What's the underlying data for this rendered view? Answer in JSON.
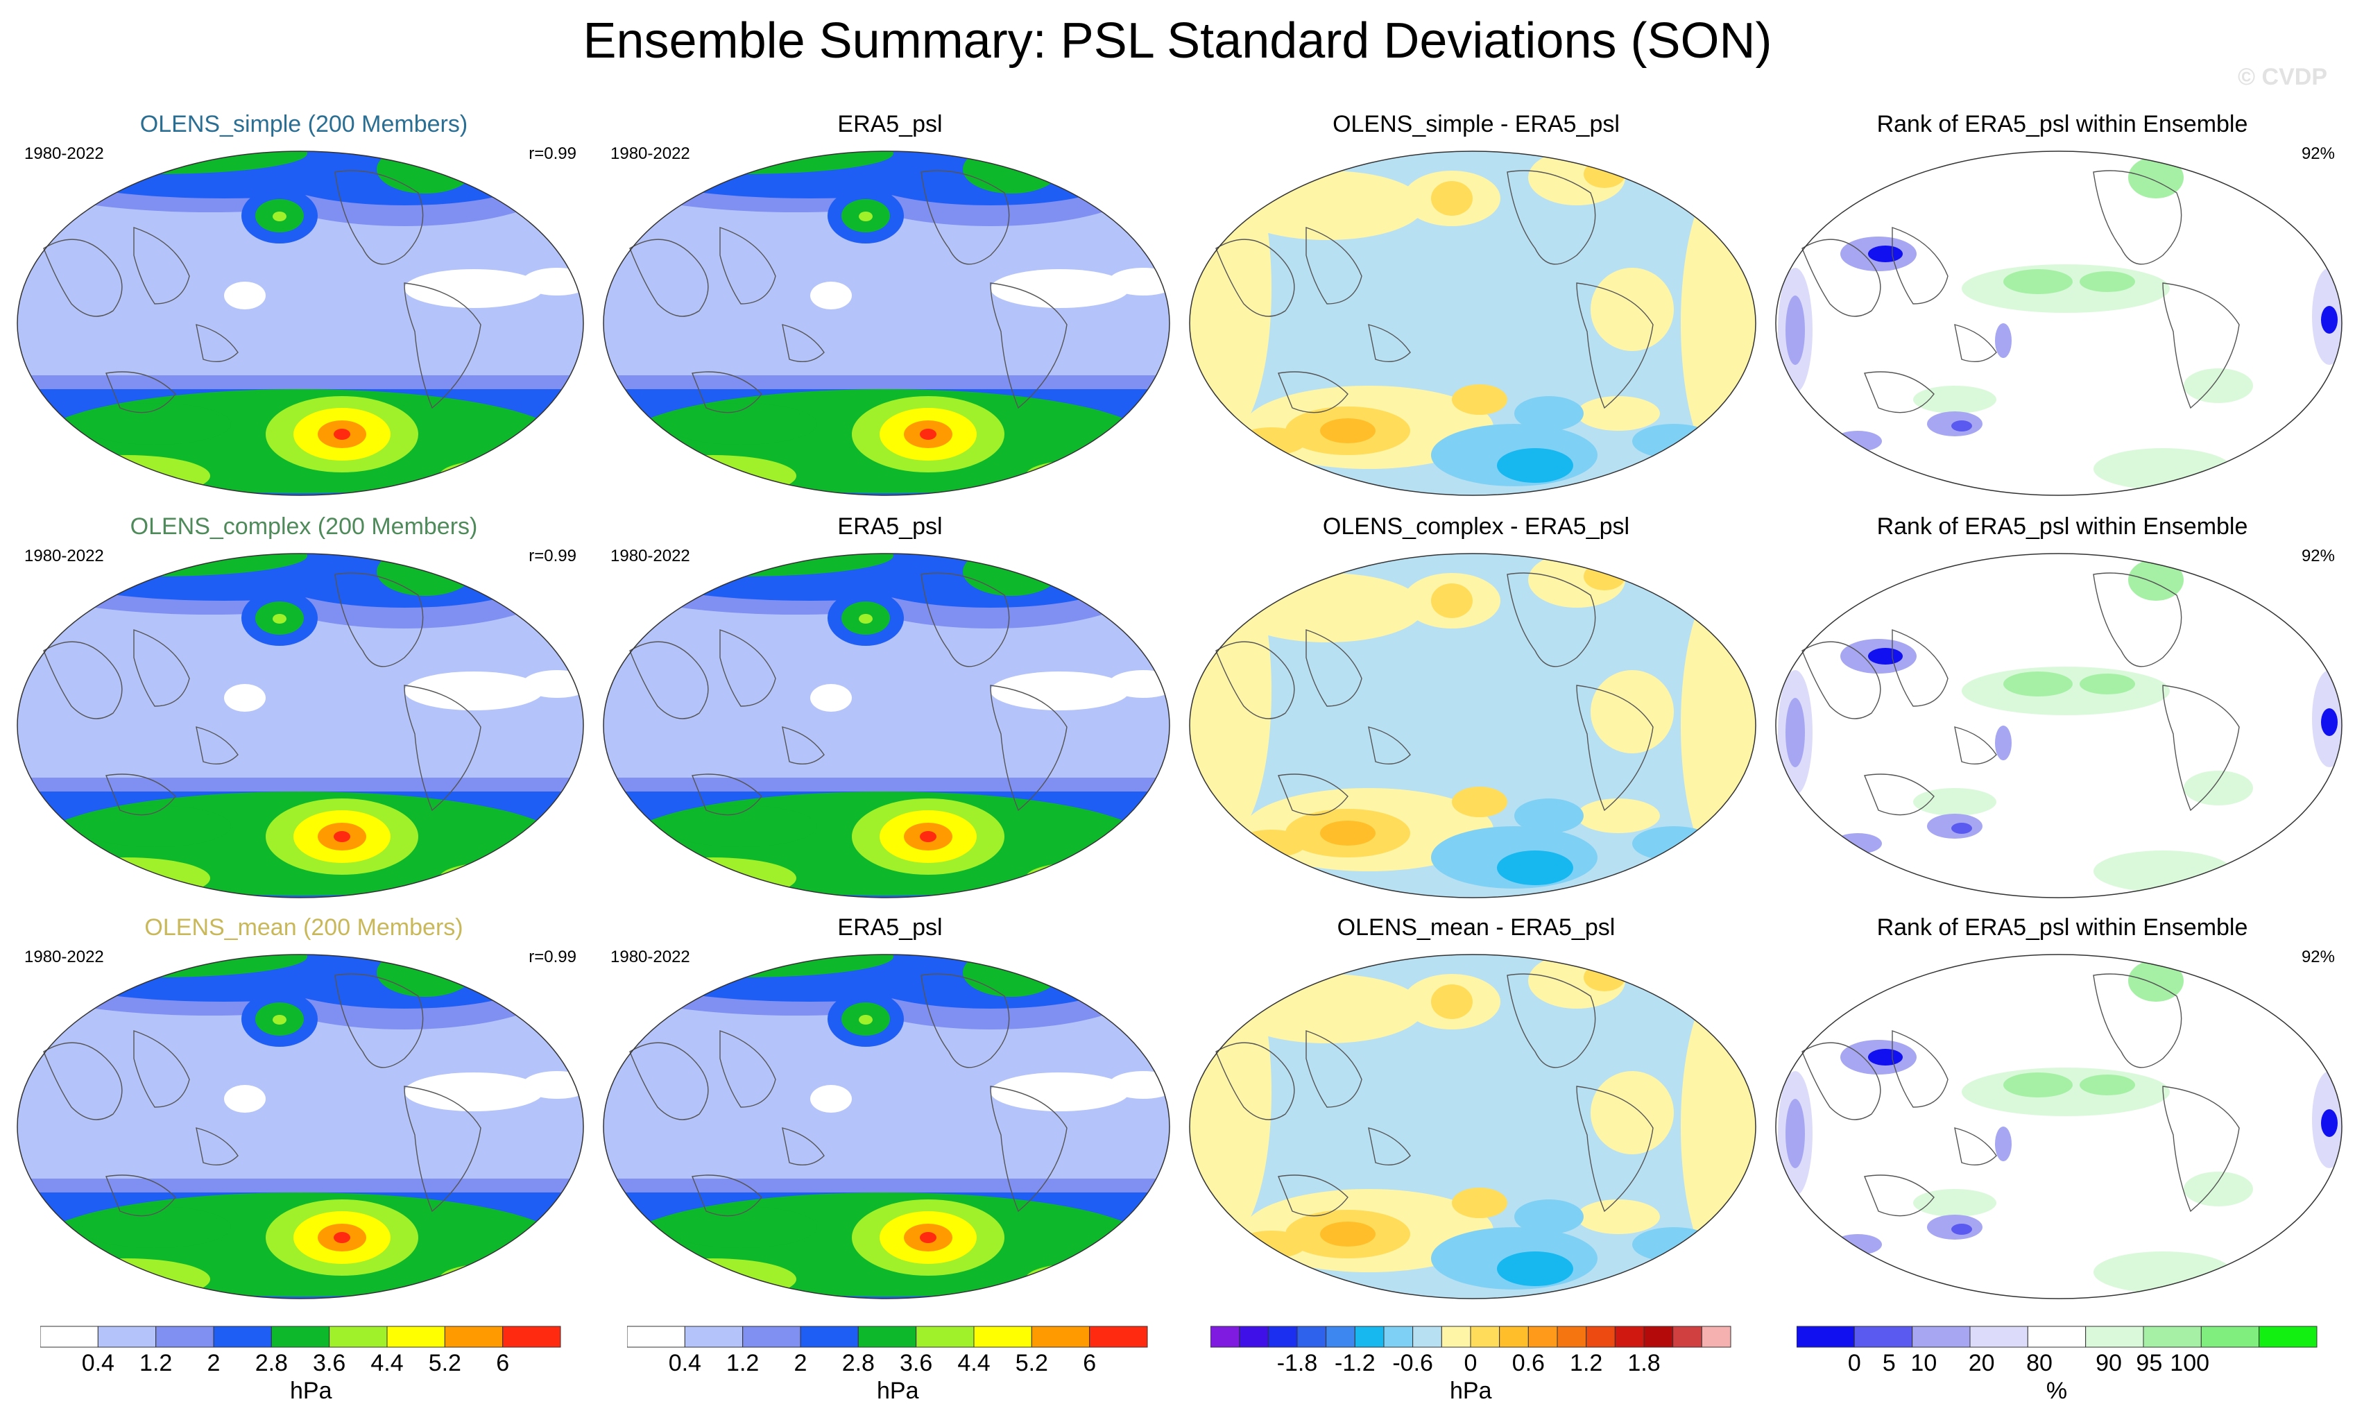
{
  "page": {
    "title": "Ensemble Summary: PSL Standard Deviations (SON)",
    "watermark": "© CVDP"
  },
  "colors": {
    "std": [
      "#ffffff",
      "#b4c3fa",
      "#7f8ff2",
      "#1f5ef5",
      "#0db82a",
      "#a0f02a",
      "#ffff00",
      "#ff9a00",
      "#ff2a10"
    ],
    "diff": [
      "#7f1ae0",
      "#3f10e8",
      "#1a2ff0",
      "#2f62ec",
      "#3d87f0",
      "#17b7f0",
      "#7fd0f5",
      "#b7e0f3",
      "#fff5a6",
      "#ffdc5a",
      "#ffbe2a",
      "#ff9a1a",
      "#f57510",
      "#ec4a10",
      "#d01810",
      "#b40a0a",
      "#d04040",
      "#f5b0b0"
    ],
    "rank": [
      "#1010f0",
      "#5a5af0",
      "#a6a6f3",
      "#dcdcfa",
      "#ffffff",
      "#daf9da",
      "#a6f0a6",
      "#7fee7f",
      "#12f012"
    ]
  },
  "colorbars": {
    "std": {
      "labels": [
        "0.4",
        "1.2",
        "2",
        "2.8",
        "3.6",
        "4.4",
        "5.2",
        "6"
      ],
      "unit": "hPa"
    },
    "diff": {
      "labels": [
        "-1.8",
        "-1.2",
        "-0.6",
        "0",
        "0.6",
        "1.2",
        "1.8"
      ],
      "unit": "hPa"
    },
    "rank": {
      "labels": [
        "0",
        "5",
        "10",
        "20",
        "80",
        "90",
        "95",
        "100"
      ],
      "unit": "%"
    }
  },
  "chart_data": [
    {
      "type": "heatmap",
      "row": 1,
      "title": "OLENS_simple (200 Members)",
      "title_color": "#2a6f93",
      "period": "1980-2022",
      "stat": "r=0.99",
      "field": "std",
      "units": "hPa"
    },
    {
      "type": "heatmap",
      "row": 1,
      "title": "ERA5_psl",
      "period": "1980-2022",
      "stat": "",
      "field": "std",
      "units": "hPa"
    },
    {
      "type": "heatmap",
      "row": 1,
      "title": "OLENS_simple - ERA5_psl",
      "period": "",
      "stat": "",
      "field": "diff",
      "units": "hPa"
    },
    {
      "type": "heatmap",
      "row": 1,
      "title": "Rank of ERA5_psl within Ensemble",
      "period": "",
      "stat": "92%",
      "field": "rank",
      "units": "%"
    },
    {
      "type": "heatmap",
      "row": 2,
      "title": "OLENS_complex (200 Members)",
      "title_color": "#4f8a5a",
      "period": "1980-2022",
      "stat": "r=0.99",
      "field": "std",
      "units": "hPa"
    },
    {
      "type": "heatmap",
      "row": 2,
      "title": "ERA5_psl",
      "period": "1980-2022",
      "stat": "",
      "field": "std",
      "units": "hPa"
    },
    {
      "type": "heatmap",
      "row": 2,
      "title": "OLENS_complex - ERA5_psl",
      "period": "",
      "stat": "",
      "field": "diff",
      "units": "hPa"
    },
    {
      "type": "heatmap",
      "row": 2,
      "title": "Rank of ERA5_psl within Ensemble",
      "period": "",
      "stat": "92%",
      "field": "rank",
      "units": "%"
    },
    {
      "type": "heatmap",
      "row": 3,
      "title": "OLENS_mean (200 Members)",
      "title_color": "#c9b85a",
      "period": "1980-2022",
      "stat": "r=0.99",
      "field": "std",
      "units": "hPa"
    },
    {
      "type": "heatmap",
      "row": 3,
      "title": "ERA5_psl",
      "period": "1980-2022",
      "stat": "",
      "field": "std",
      "units": "hPa"
    },
    {
      "type": "heatmap",
      "row": 3,
      "title": "OLENS_mean - ERA5_psl",
      "period": "",
      "stat": "",
      "field": "diff",
      "units": "hPa"
    },
    {
      "type": "heatmap",
      "row": 3,
      "title": "Rank of ERA5_psl within Ensemble",
      "period": "",
      "stat": "92%",
      "field": "rank",
      "units": "%"
    }
  ]
}
